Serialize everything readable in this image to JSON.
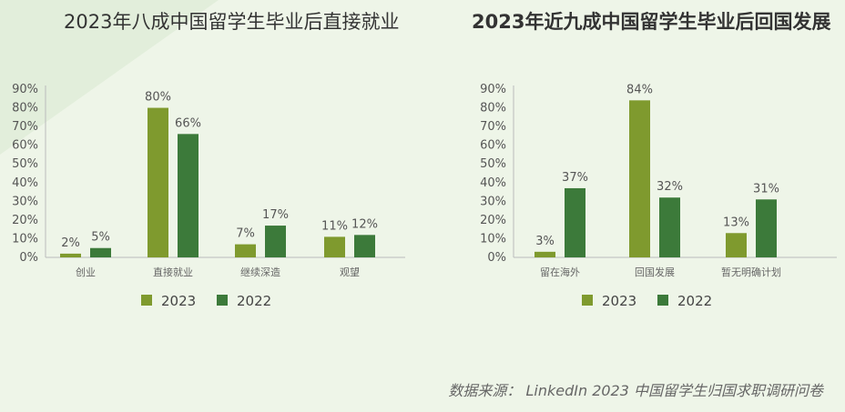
{
  "chart_data": [
    {
      "type": "bar",
      "title": "2023年八成中国留学生毕业后直接就业",
      "categories": [
        "创业",
        "直接就业",
        "继续深造",
        "观望"
      ],
      "series": [
        {
          "name": "2023",
          "values": [
            2,
            80,
            7,
            11
          ]
        },
        {
          "name": "2022",
          "values": [
            5,
            66,
            17,
            12
          ]
        }
      ],
      "value_labels": [
        [
          "2%",
          "80%",
          "7%",
          "11%"
        ],
        [
          "5%",
          "66%",
          "17%",
          "12%"
        ]
      ],
      "y_ticks": [
        "0%",
        "10%",
        "20%",
        "30%",
        "40%",
        "50%",
        "60%",
        "70%",
        "80%",
        "90%"
      ],
      "ylim": [
        0,
        90
      ],
      "legend_position": "bottom"
    },
    {
      "type": "bar",
      "title": "2023年近九成中国留学生毕业后回国发展",
      "categories": [
        "留在海外",
        "回国发展",
        "暂无明确计划"
      ],
      "series": [
        {
          "name": "2023",
          "values": [
            3,
            84,
            13
          ]
        },
        {
          "name": "2022",
          "values": [
            37,
            32,
            31
          ]
        }
      ],
      "value_labels": [
        [
          "3%",
          "84%",
          "13%"
        ],
        [
          "37%",
          "32%",
          "31%"
        ]
      ],
      "y_ticks": [
        "0%",
        "10%",
        "20%",
        "30%",
        "40%",
        "50%",
        "60%",
        "70%",
        "80%",
        "90%"
      ],
      "ylim": [
        0,
        90
      ],
      "legend_position": "bottom"
    }
  ],
  "colors": {
    "series_2023": "#7f9a2e",
    "series_2022": "#3c7a3a",
    "axis": "#bbbbbb",
    "text": "#555555"
  },
  "source_text": "数据来源： LinkedIn 2023 中国留学生归国求职调研问卷"
}
